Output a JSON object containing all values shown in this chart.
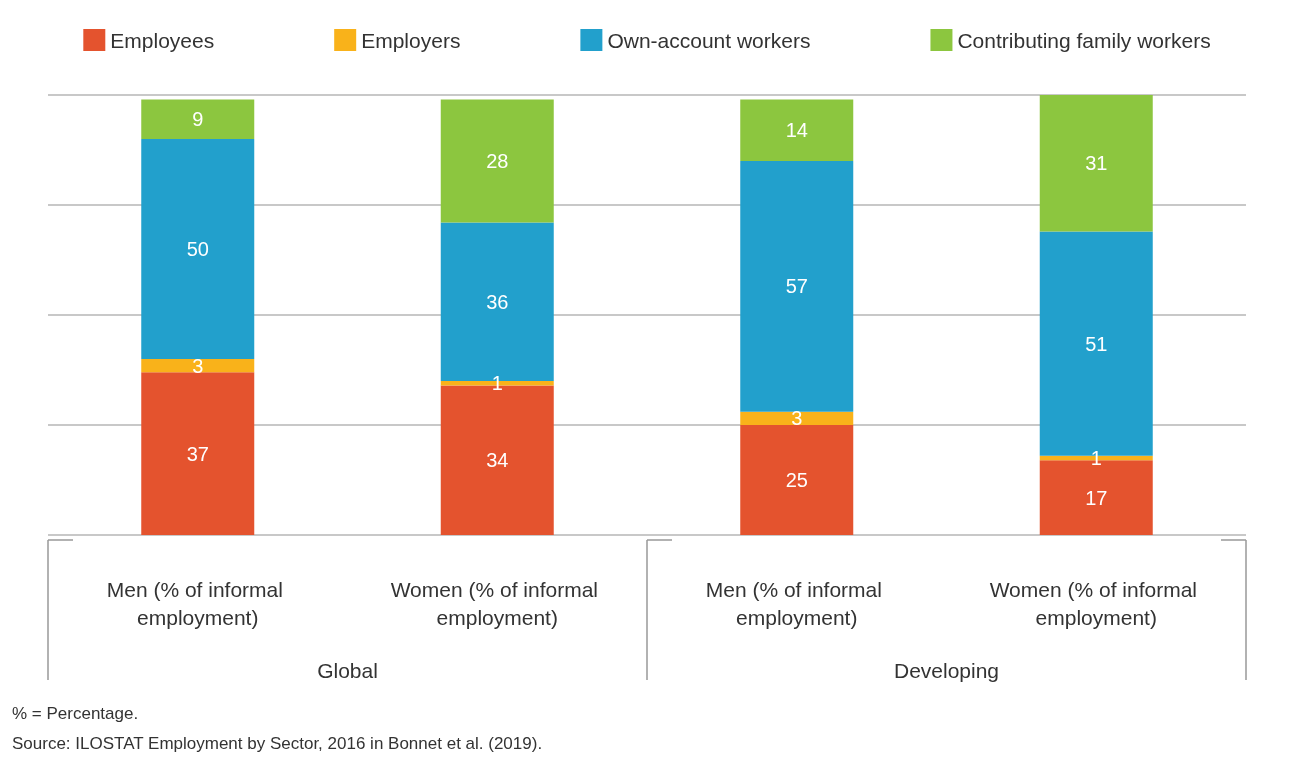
{
  "chart_data": {
    "type": "bar",
    "stacked": true,
    "categories": [
      "Men (% of informal employment)",
      "Women (% of informal employment)",
      "Men (% of informal employment)",
      "Women (% of informal employment)"
    ],
    "series": [
      {
        "name": "Employees",
        "color": "#e4532e",
        "values": [
          37,
          34,
          25,
          17
        ]
      },
      {
        "name": "Employers",
        "color": "#f9b21a",
        "values": [
          3,
          1,
          3,
          1
        ]
      },
      {
        "name": "Own-account workers",
        "color": "#22a0cc",
        "values": [
          50,
          36,
          57,
          51
        ]
      },
      {
        "name": "Contributing family workers",
        "color": "#8cc63f",
        "values": [
          9,
          28,
          14,
          31
        ]
      }
    ],
    "ylim": [
      0,
      100
    ],
    "yticks": [
      {
        "value": 0,
        "label": null
      },
      {
        "value": 25,
        "label": null
      },
      {
        "value": 50,
        "label": null
      },
      {
        "value": 75,
        "label": null
      },
      {
        "value": 100,
        "label": null
      }
    ],
    "tick_labels": "x",
    "grid": "y",
    "legend": "top",
    "data_labels": true,
    "annotations": [
      "Global",
      "Developing",
      "% = Percentage.",
      "Source: ILOSTAT Employment by Sector, 2016 in Bonnet et al. (2019)."
    ]
  }
}
